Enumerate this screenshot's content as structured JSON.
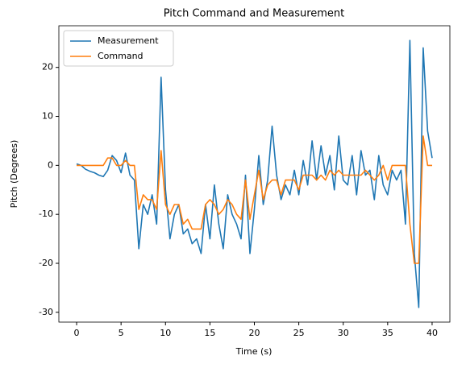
{
  "chart_data": {
    "type": "line",
    "title": "Pitch Command and Measurement",
    "x_label": "Time (s)",
    "y_label": "Pitch (Degrees)",
    "x": [
      0,
      0.5,
      1,
      1.5,
      2,
      2.5,
      3,
      3.5,
      4,
      4.5,
      5,
      5.5,
      6,
      6.5,
      7,
      7.5,
      8,
      8.5,
      9,
      9.5,
      10,
      10.5,
      11,
      11.5,
      12,
      12.5,
      13,
      13.5,
      14,
      14.5,
      15,
      15.5,
      16,
      16.5,
      17,
      17.5,
      18,
      18.5,
      19,
      19.5,
      20,
      20.5,
      21,
      21.5,
      22,
      22.5,
      23,
      23.5,
      24,
      24.5,
      25,
      25.5,
      26,
      26.5,
      27,
      27.5,
      28,
      28.5,
      29,
      29.5,
      30,
      30.5,
      31,
      31.5,
      32,
      32.5,
      33,
      33.5,
      34,
      34.5,
      35,
      35.5,
      36,
      36.5,
      37,
      37.5,
      38,
      38.5,
      39,
      39.5,
      40
    ],
    "series": [
      {
        "name": "Measurement",
        "color": "#1f77b4",
        "values": [
          0.3,
          0,
          -0.8,
          -1.2,
          -1.5,
          -2,
          -2.3,
          -1,
          2,
          1,
          -1.5,
          2.5,
          -2,
          -3,
          -17,
          -8,
          -10,
          -6,
          -12,
          18,
          -5,
          -15,
          -10,
          -8,
          -14,
          -13,
          -16,
          -15,
          -18,
          -8,
          -15,
          -4,
          -12,
          -17,
          -6,
          -10,
          -12,
          -15,
          -2,
          -18,
          -9,
          2,
          -8,
          -3,
          8,
          -2,
          -7,
          -4,
          -6,
          -1,
          -6,
          1,
          -4,
          5,
          -3,
          4,
          -2,
          2,
          -5,
          6,
          -3,
          -4,
          2,
          -6,
          3,
          -2,
          -1,
          -7,
          2,
          -4,
          -6,
          -1,
          -3,
          -1,
          -12,
          25.5,
          -18,
          -29,
          24,
          7,
          1.5
        ]
      },
      {
        "name": "Command",
        "color": "#ff7f0e",
        "values": [
          0,
          0,
          0,
          0,
          0,
          0,
          0,
          1.5,
          1.5,
          0,
          0,
          1,
          0,
          0,
          -9,
          -6,
          -7,
          -7,
          -9,
          3,
          -8,
          -10,
          -8,
          -8,
          -12,
          -11,
          -13,
          -13,
          -13,
          -8,
          -7,
          -8,
          -10,
          -9,
          -7,
          -8,
          -10,
          -11,
          -3,
          -11,
          -6,
          -1,
          -7,
          -4,
          -3,
          -3,
          -6,
          -3,
          -3,
          -3,
          -5,
          -2,
          -2,
          -2,
          -3,
          -2,
          -3,
          -1,
          -2,
          -1,
          -2,
          -2,
          -2,
          -2,
          -2,
          -1,
          -2,
          -3,
          -2,
          0,
          -3,
          0,
          0,
          0,
          0,
          -12,
          -20,
          -20,
          6,
          0,
          0
        ]
      }
    ],
    "xlim": [
      -2,
      42
    ],
    "ylim": [
      -32,
      28.5
    ],
    "xticks": [
      0,
      5,
      10,
      15,
      20,
      25,
      30,
      35,
      40
    ],
    "yticks": [
      -30,
      -20,
      -10,
      0,
      10,
      20
    ],
    "legend": "upper left",
    "grid": false
  }
}
